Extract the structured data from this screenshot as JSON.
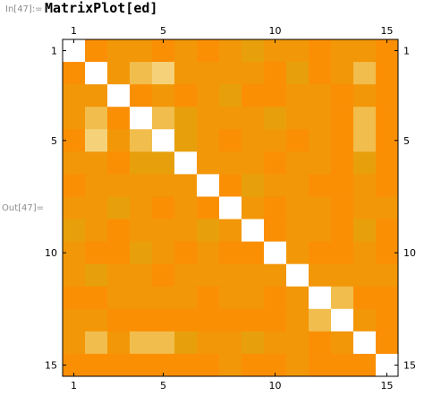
{
  "cell": {
    "input_label": "In[47]:=",
    "input_code": "MatrixPlot[ed]",
    "output_label": "Out[47]="
  },
  "palette": {
    "diag": "#ffffff",
    "levels": [
      "#ff7f00",
      "#fb8f04",
      "#f29708",
      "#e7a00c",
      "#f1bd4c",
      "#f5d27a",
      "#fae6ad"
    ]
  },
  "chart_data": {
    "type": "heatmap",
    "title": "",
    "xlabel": "",
    "ylabel": "",
    "rows": 15,
    "cols": 15,
    "x_ticks": [
      1,
      5,
      10,
      15
    ],
    "y_ticks": [
      1,
      5,
      10,
      15
    ],
    "matrix": [
      [
        0,
        1,
        2,
        2,
        1,
        2,
        1,
        2,
        3,
        2,
        2,
        1,
        2,
        2,
        1
      ],
      [
        1,
        0,
        2,
        4,
        5,
        2,
        2,
        2,
        2,
        1,
        3,
        1,
        2,
        4,
        1
      ],
      [
        2,
        2,
        0,
        1,
        2,
        1,
        2,
        3,
        1,
        1,
        2,
        2,
        1,
        2,
        1
      ],
      [
        2,
        4,
        1,
        0,
        4,
        3,
        2,
        2,
        2,
        3,
        2,
        2,
        1,
        4,
        1
      ],
      [
        1,
        5,
        2,
        4,
        0,
        3,
        2,
        1,
        2,
        2,
        1,
        2,
        1,
        4,
        1
      ],
      [
        2,
        2,
        1,
        3,
        3,
        0,
        2,
        2,
        2,
        1,
        2,
        2,
        1,
        3,
        1
      ],
      [
        1,
        2,
        2,
        2,
        2,
        2,
        0,
        1,
        3,
        2,
        2,
        1,
        1,
        2,
        1
      ],
      [
        2,
        2,
        3,
        2,
        1,
        2,
        1,
        0,
        2,
        1,
        2,
        2,
        1,
        2,
        2
      ],
      [
        3,
        2,
        1,
        2,
        2,
        2,
        3,
        2,
        0,
        1,
        2,
        2,
        1,
        3,
        1
      ],
      [
        2,
        1,
        1,
        3,
        2,
        1,
        2,
        1,
        1,
        0,
        2,
        1,
        1,
        2,
        1
      ],
      [
        2,
        3,
        2,
        2,
        1,
        2,
        2,
        2,
        2,
        2,
        0,
        2,
        2,
        2,
        2
      ],
      [
        1,
        1,
        2,
        2,
        2,
        2,
        1,
        2,
        2,
        1,
        2,
        0,
        4,
        1,
        1
      ],
      [
        2,
        2,
        1,
        1,
        1,
        1,
        1,
        1,
        1,
        1,
        2,
        4,
        0,
        2,
        1
      ],
      [
        2,
        4,
        2,
        4,
        4,
        3,
        2,
        2,
        3,
        2,
        2,
        1,
        2,
        0,
        1
      ],
      [
        1,
        1,
        1,
        1,
        1,
        1,
        1,
        2,
        1,
        1,
        2,
        1,
        1,
        1,
        0
      ]
    ]
  }
}
